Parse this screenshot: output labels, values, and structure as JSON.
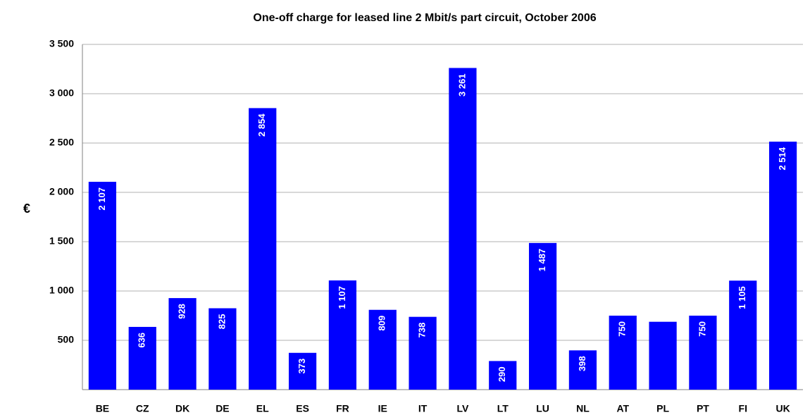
{
  "chart_data": {
    "type": "bar",
    "title": "One-off charge for leased line 2 Mbit/s part circuit, October 2006",
    "y_label": "€",
    "categories": [
      "BE",
      "CZ",
      "DK",
      "DE",
      "EL",
      "ES",
      "FR",
      "IE",
      "IT",
      "LV",
      "LT",
      "LU",
      "NL",
      "AT",
      "PL",
      "PT",
      "FI",
      "UK"
    ],
    "values": [
      2107,
      636,
      928,
      825,
      2854,
      373,
      1107,
      809,
      738,
      3261,
      290,
      1487,
      398,
      750,
      688,
      750,
      1105,
      2514
    ],
    "value_labels": [
      "2 107",
      "636",
      "928",
      "825",
      "2 854",
      "373",
      "1 107",
      "809",
      "738",
      "3 261",
      "290",
      "1 487",
      "398",
      "750",
      null,
      "750",
      "1 105",
      "2 514"
    ],
    "color": "#0000ff",
    "ylim": [
      0,
      3500
    ],
    "yticks": [
      500,
      {
        "value": 1000,
        "label": "1 000"
      },
      {
        "value": 1500,
        "label": "1 500"
      },
      {
        "value": 2000,
        "label": "2 000"
      },
      {
        "value": 2500,
        "label": "2 500"
      },
      {
        "value": 3000,
        "label": "3 000"
      },
      {
        "value": 3500,
        "label": "3 500"
      }
    ],
    "grid": true
  }
}
